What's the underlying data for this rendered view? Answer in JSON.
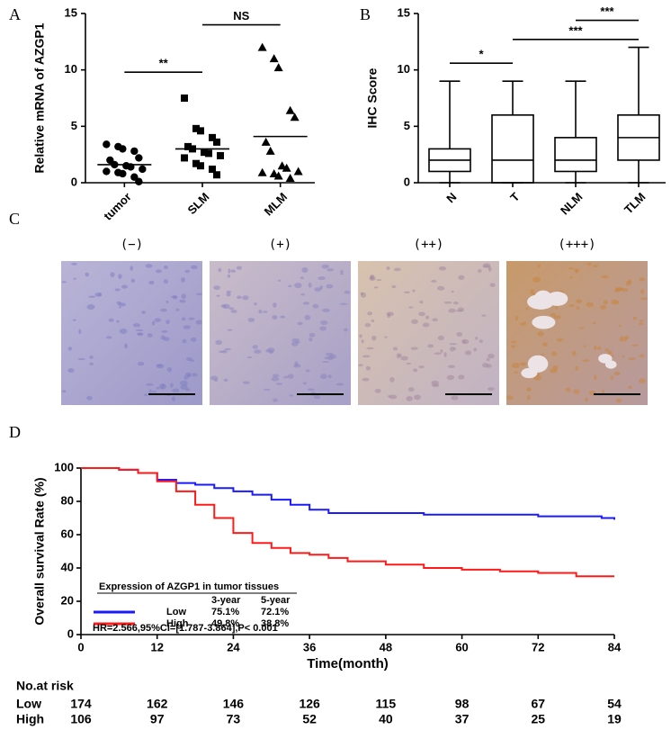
{
  "chart_data": [
    {
      "type": "dot",
      "panel": "A",
      "ylabel": "Relative mRNA of AZGP1",
      "categories": [
        "tumor",
        "SLM",
        "MLM"
      ],
      "markers": [
        "circle",
        "square",
        "triangle"
      ],
      "values": [
        [
          3.4,
          3.2,
          3.0,
          2.8,
          2.2,
          2.0,
          1.6,
          1.5,
          1.4,
          1.2,
          1.0,
          0.9,
          0.8,
          0.5,
          0.1
        ],
        [
          7.5,
          4.8,
          4.6,
          4.0,
          3.6,
          3.2,
          3.0,
          2.7,
          2.6,
          2.4,
          2.2,
          1.7,
          1.5,
          1.2,
          0.7
        ],
        [
          12,
          11,
          10.2,
          6.4,
          5.8,
          3.6,
          2.8,
          1.5,
          1.3,
          1.0,
          0.9,
          0.8,
          0.6,
          0.4
        ]
      ],
      "means": [
        1.6,
        3.0,
        4.1
      ],
      "ylim": [
        0,
        15
      ],
      "yticks": [
        0,
        5,
        10,
        15
      ],
      "brackets": [
        {
          "text": "**",
          "from": "tumor",
          "to": "SLM",
          "y": 9.8
        },
        {
          "text": "NS",
          "from": "SLM",
          "to": "MLM",
          "y": 14
        }
      ]
    },
    {
      "type": "box",
      "panel": "B",
      "ylabel": "IHC Score",
      "categories": [
        "N",
        "T",
        "NLM",
        "TLM"
      ],
      "min": [
        0,
        0,
        0,
        0
      ],
      "q1": [
        1,
        0,
        1,
        2
      ],
      "median": [
        2,
        2,
        2,
        4
      ],
      "q3": [
        3,
        6,
        4,
        6
      ],
      "max": [
        9,
        9,
        9,
        12
      ],
      "ylim": [
        0,
        15
      ],
      "yticks": [
        0,
        5,
        10,
        15
      ],
      "brackets": [
        {
          "text": "*",
          "from": "N",
          "to": "T",
          "y": 10.6
        },
        {
          "text": "***",
          "from": "T",
          "to": "TLM",
          "y": 12.7
        },
        {
          "text": "***",
          "from": "NLM",
          "to": "TLM",
          "y": 14.4
        }
      ]
    },
    {
      "type": "km",
      "panel": "D",
      "xlabel": "Time(month)",
      "ylabel": "Overall survival Rate (%)",
      "xlim": [
        0,
        84
      ],
      "xticks": [
        0,
        12,
        24,
        36,
        48,
        60,
        72,
        84
      ],
      "ylim": [
        0,
        100
      ],
      "yticks": [
        0,
        20,
        40,
        60,
        80,
        100
      ],
      "legend_title": "Expression of AZGP1 in tumor tissues",
      "legend_columns": [
        "3-year",
        "5-year"
      ],
      "series": [
        {
          "name": "Low",
          "color": "#1a1aff",
          "rate_labels": [
            "75.1%",
            "72.1%"
          ],
          "x": [
            0,
            3,
            6,
            9,
            12,
            15,
            18,
            21,
            24,
            27,
            30,
            33,
            36,
            39,
            42,
            48,
            54,
            60,
            66,
            72,
            78,
            82,
            84
          ],
          "values": [
            100,
            100,
            99,
            97,
            93,
            91,
            90,
            88,
            86,
            84,
            81,
            78,
            75,
            73,
            73,
            73,
            72,
            72,
            72,
            71,
            71,
            70,
            69
          ]
        },
        {
          "name": "High",
          "color": "#ff1a1a",
          "rate_labels": [
            "49.8%",
            "38.8%"
          ],
          "x": [
            0,
            6,
            9,
            12,
            15,
            18,
            21,
            24,
            27,
            30,
            33,
            36,
            39,
            42,
            48,
            54,
            60,
            66,
            72,
            78,
            84
          ],
          "values": [
            100,
            99,
            97,
            92,
            86,
            78,
            70,
            61,
            55,
            52,
            49,
            48,
            46,
            44,
            42,
            40,
            39,
            38,
            37,
            35,
            35
          ]
        }
      ],
      "annotation": "HR=2.566,95%CI=[1.787-3.864],P< 0.001",
      "risk_table": {
        "title": "No.at risk",
        "rows": [
          {
            "name": "Low",
            "values": [
              174,
              162,
              146,
              126,
              115,
              98,
              67,
              54
            ]
          },
          {
            "name": "High",
            "values": [
              106,
              97,
              73,
              52,
              40,
              37,
              25,
              19
            ]
          }
        ]
      }
    }
  ],
  "ihc_panel": {
    "panel": "C",
    "images": [
      "(−)",
      "(+)",
      "(++)",
      "(+++)"
    ]
  }
}
